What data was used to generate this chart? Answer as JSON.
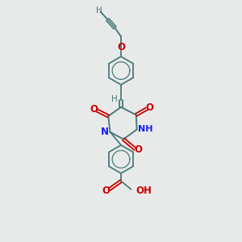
{
  "bg_color": "#e8eaea",
  "bond_color": "#4a7a7a",
  "atom_colors": {
    "O": "#cc0000",
    "N": "#1a1aff",
    "H": "#4a7a7a",
    "C": "#4a7a7a"
  },
  "figsize": [
    3.0,
    3.0
  ],
  "dpi": 100,
  "xlim": [
    2.5,
    7.5
  ],
  "ylim": [
    0.3,
    10.2
  ]
}
